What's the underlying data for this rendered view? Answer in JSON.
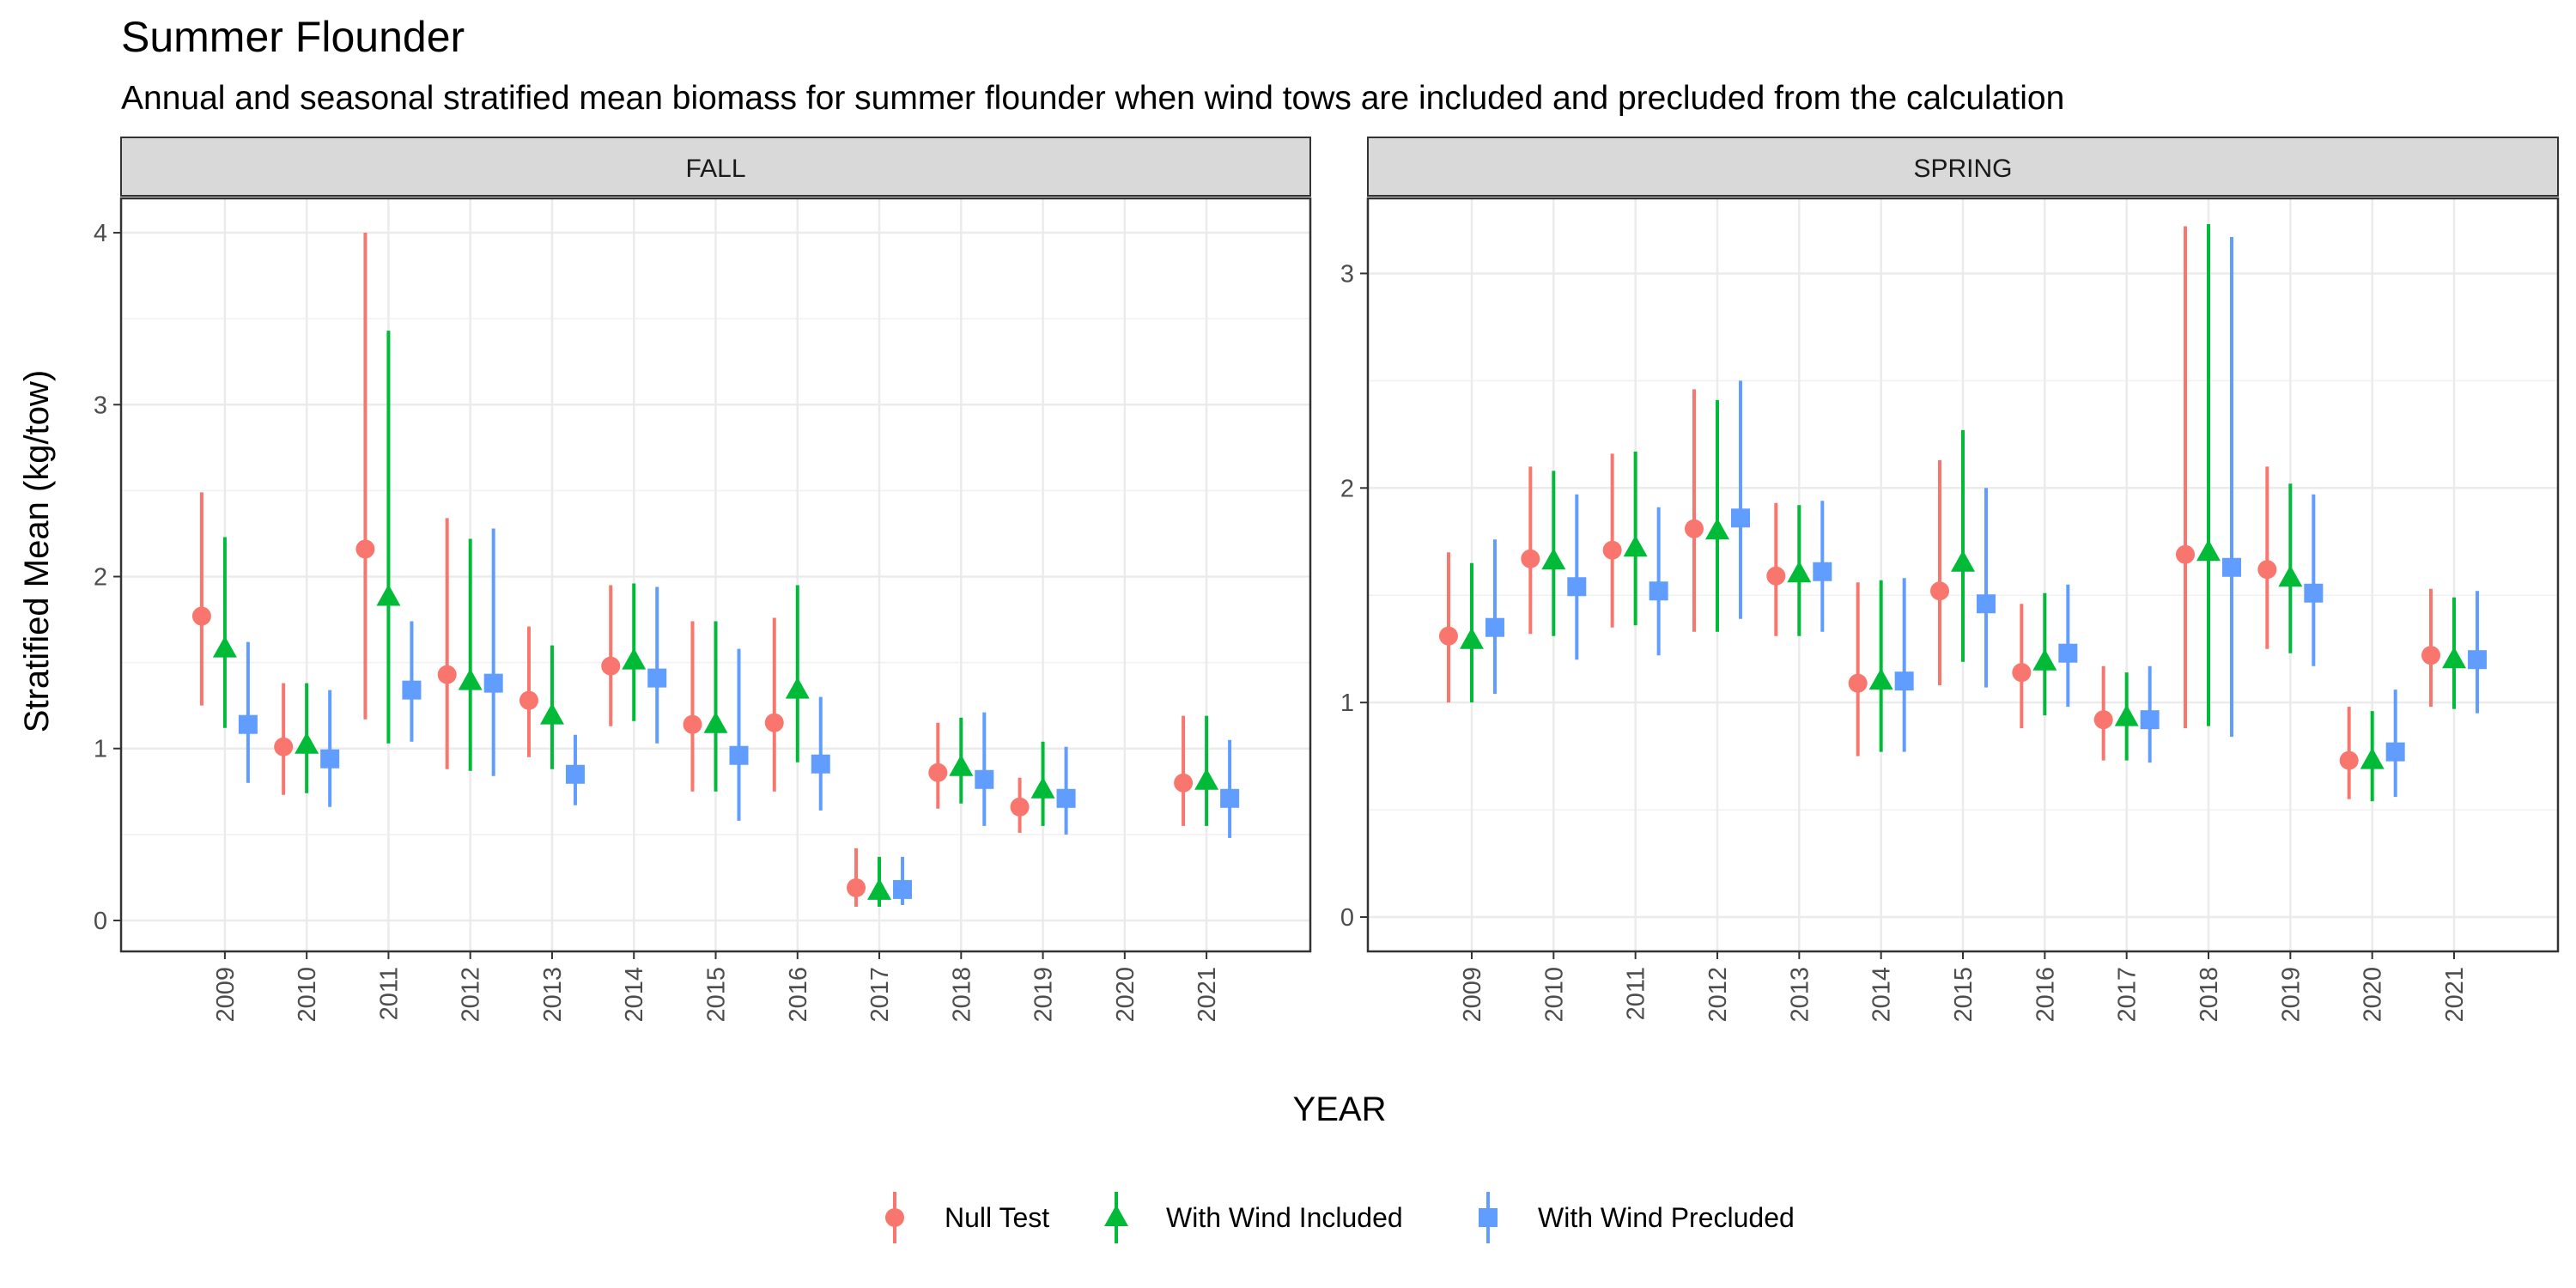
{
  "chart_data": {
    "type": "scatter",
    "title": "Summer Flounder",
    "subtitle": "Annual and seasonal stratified mean biomass for summer flounder when wind tows are included and precluded from the calculation",
    "xlabel": "YEAR",
    "ylabel": "Stratified Mean (kg/tow)",
    "legend_position": "bottom",
    "grid": true,
    "series_styles": [
      {
        "name": "Null Test",
        "color": "#F8766D",
        "shape": "circle"
      },
      {
        "name": "With Wind Included",
        "color": "#00BA38",
        "shape": "triangle"
      },
      {
        "name": "With Wind Precluded",
        "color": "#619CFF",
        "shape": "square"
      }
    ],
    "panels": [
      {
        "strip": "FALL",
        "categories": [
          "2009",
          "2010",
          "2011",
          "2012",
          "2013",
          "2014",
          "2015",
          "2016",
          "2017",
          "2018",
          "2019",
          "2020",
          "2021"
        ],
        "ylim": [
          -0.18,
          4.2
        ],
        "yticks": [
          0,
          1,
          2,
          3,
          4
        ],
        "series": [
          {
            "name": "Null Test",
            "values": [
              {
                "x": "2009",
                "y": 1.77,
                "lo": 1.25,
                "hi": 2.49
              },
              {
                "x": "2010",
                "y": 1.01,
                "lo": 0.73,
                "hi": 1.38
              },
              {
                "x": "2011",
                "y": 2.16,
                "lo": 1.17,
                "hi": 4.0
              },
              {
                "x": "2012",
                "y": 1.43,
                "lo": 0.88,
                "hi": 2.34
              },
              {
                "x": "2013",
                "y": 1.28,
                "lo": 0.95,
                "hi": 1.71
              },
              {
                "x": "2014",
                "y": 1.48,
                "lo": 1.13,
                "hi": 1.95
              },
              {
                "x": "2015",
                "y": 1.14,
                "lo": 0.75,
                "hi": 1.74
              },
              {
                "x": "2016",
                "y": 1.15,
                "lo": 0.75,
                "hi": 1.76
              },
              {
                "x": "2017",
                "y": 0.19,
                "lo": 0.08,
                "hi": 0.42
              },
              {
                "x": "2018",
                "y": 0.86,
                "lo": 0.65,
                "hi": 1.15
              },
              {
                "x": "2019",
                "y": 0.66,
                "lo": 0.51,
                "hi": 0.83
              },
              {
                "x": "2021",
                "y": 0.8,
                "lo": 0.55,
                "hi": 1.19
              }
            ]
          },
          {
            "name": "With Wind Included",
            "values": [
              {
                "x": "2009",
                "y": 1.58,
                "lo": 1.12,
                "hi": 2.23
              },
              {
                "x": "2010",
                "y": 1.02,
                "lo": 0.74,
                "hi": 1.38
              },
              {
                "x": "2011",
                "y": 1.88,
                "lo": 1.03,
                "hi": 3.43
              },
              {
                "x": "2012",
                "y": 1.39,
                "lo": 0.87,
                "hi": 2.22
              },
              {
                "x": "2013",
                "y": 1.19,
                "lo": 0.88,
                "hi": 1.6
              },
              {
                "x": "2014",
                "y": 1.51,
                "lo": 1.16,
                "hi": 1.96
              },
              {
                "x": "2015",
                "y": 1.14,
                "lo": 0.75,
                "hi": 1.74
              },
              {
                "x": "2016",
                "y": 1.34,
                "lo": 0.92,
                "hi": 1.95
              },
              {
                "x": "2017",
                "y": 0.17,
                "lo": 0.08,
                "hi": 0.37
              },
              {
                "x": "2018",
                "y": 0.89,
                "lo": 0.68,
                "hi": 1.18
              },
              {
                "x": "2019",
                "y": 0.76,
                "lo": 0.55,
                "hi": 1.04
              },
              {
                "x": "2021",
                "y": 0.81,
                "lo": 0.55,
                "hi": 1.19
              }
            ]
          },
          {
            "name": "With Wind Precluded",
            "values": [
              {
                "x": "2009",
                "y": 1.14,
                "lo": 0.8,
                "hi": 1.62
              },
              {
                "x": "2010",
                "y": 0.94,
                "lo": 0.66,
                "hi": 1.34
              },
              {
                "x": "2011",
                "y": 1.34,
                "lo": 1.04,
                "hi": 1.74
              },
              {
                "x": "2012",
                "y": 1.38,
                "lo": 0.84,
                "hi": 2.28
              },
              {
                "x": "2013",
                "y": 0.85,
                "lo": 0.67,
                "hi": 1.08
              },
              {
                "x": "2014",
                "y": 1.41,
                "lo": 1.03,
                "hi": 1.94
              },
              {
                "x": "2015",
                "y": 0.96,
                "lo": 0.58,
                "hi": 1.58
              },
              {
                "x": "2016",
                "y": 0.91,
                "lo": 0.64,
                "hi": 1.3
              },
              {
                "x": "2017",
                "y": 0.18,
                "lo": 0.09,
                "hi": 0.37
              },
              {
                "x": "2018",
                "y": 0.82,
                "lo": 0.55,
                "hi": 1.21
              },
              {
                "x": "2019",
                "y": 0.71,
                "lo": 0.5,
                "hi": 1.01
              },
              {
                "x": "2021",
                "y": 0.71,
                "lo": 0.48,
                "hi": 1.05
              }
            ]
          }
        ]
      },
      {
        "strip": "SPRING",
        "categories": [
          "2009",
          "2010",
          "2011",
          "2012",
          "2013",
          "2014",
          "2015",
          "2016",
          "2017",
          "2018",
          "2019",
          "2020",
          "2021"
        ],
        "ylim": [
          -0.16,
          3.35
        ],
        "yticks": [
          0,
          1,
          2,
          3
        ],
        "series": [
          {
            "name": "Null Test",
            "values": [
              {
                "x": "2009",
                "y": 1.31,
                "lo": 1.0,
                "hi": 1.7
              },
              {
                "x": "2010",
                "y": 1.67,
                "lo": 1.32,
                "hi": 2.1
              },
              {
                "x": "2011",
                "y": 1.71,
                "lo": 1.35,
                "hi": 2.16
              },
              {
                "x": "2012",
                "y": 1.81,
                "lo": 1.33,
                "hi": 2.46
              },
              {
                "x": "2013",
                "y": 1.59,
                "lo": 1.31,
                "hi": 1.93
              },
              {
                "x": "2014",
                "y": 1.09,
                "lo": 0.75,
                "hi": 1.56
              },
              {
                "x": "2015",
                "y": 1.52,
                "lo": 1.08,
                "hi": 2.13
              },
              {
                "x": "2016",
                "y": 1.14,
                "lo": 0.88,
                "hi": 1.46
              },
              {
                "x": "2017",
                "y": 0.92,
                "lo": 0.73,
                "hi": 1.17
              },
              {
                "x": "2018",
                "y": 1.69,
                "lo": 0.88,
                "hi": 3.22
              },
              {
                "x": "2019",
                "y": 1.62,
                "lo": 1.25,
                "hi": 2.1
              },
              {
                "x": "2020",
                "y": 0.73,
                "lo": 0.55,
                "hi": 0.98
              },
              {
                "x": "2021",
                "y": 1.22,
                "lo": 0.98,
                "hi": 1.53
              }
            ]
          },
          {
            "name": "With Wind Included",
            "values": [
              {
                "x": "2009",
                "y": 1.29,
                "lo": 1.0,
                "hi": 1.65
              },
              {
                "x": "2010",
                "y": 1.66,
                "lo": 1.31,
                "hi": 2.08
              },
              {
                "x": "2011",
                "y": 1.72,
                "lo": 1.36,
                "hi": 2.17
              },
              {
                "x": "2012",
                "y": 1.8,
                "lo": 1.33,
                "hi": 2.41
              },
              {
                "x": "2013",
                "y": 1.6,
                "lo": 1.31,
                "hi": 1.92
              },
              {
                "x": "2014",
                "y": 1.1,
                "lo": 0.77,
                "hi": 1.57
              },
              {
                "x": "2015",
                "y": 1.65,
                "lo": 1.19,
                "hi": 2.27
              },
              {
                "x": "2016",
                "y": 1.19,
                "lo": 0.94,
                "hi": 1.51
              },
              {
                "x": "2017",
                "y": 0.93,
                "lo": 0.73,
                "hi": 1.14
              },
              {
                "x": "2018",
                "y": 1.7,
                "lo": 0.89,
                "hi": 3.23
              },
              {
                "x": "2019",
                "y": 1.58,
                "lo": 1.23,
                "hi": 2.02
              },
              {
                "x": "2020",
                "y": 0.73,
                "lo": 0.54,
                "hi": 0.96
              },
              {
                "x": "2021",
                "y": 1.2,
                "lo": 0.97,
                "hi": 1.49
              }
            ]
          },
          {
            "name": "With Wind Precluded",
            "values": [
              {
                "x": "2009",
                "y": 1.35,
                "lo": 1.04,
                "hi": 1.76
              },
              {
                "x": "2010",
                "y": 1.54,
                "lo": 1.2,
                "hi": 1.97
              },
              {
                "x": "2011",
                "y": 1.52,
                "lo": 1.22,
                "hi": 1.91
              },
              {
                "x": "2012",
                "y": 1.86,
                "lo": 1.39,
                "hi": 2.5
              },
              {
                "x": "2013",
                "y": 1.61,
                "lo": 1.33,
                "hi": 1.94
              },
              {
                "x": "2014",
                "y": 1.1,
                "lo": 0.77,
                "hi": 1.58
              },
              {
                "x": "2015",
                "y": 1.46,
                "lo": 1.07,
                "hi": 2.0
              },
              {
                "x": "2016",
                "y": 1.23,
                "lo": 0.98,
                "hi": 1.55
              },
              {
                "x": "2017",
                "y": 0.92,
                "lo": 0.72,
                "hi": 1.17
              },
              {
                "x": "2018",
                "y": 1.63,
                "lo": 0.84,
                "hi": 3.17
              },
              {
                "x": "2019",
                "y": 1.51,
                "lo": 1.17,
                "hi": 1.97
              },
              {
                "x": "2020",
                "y": 0.77,
                "lo": 0.56,
                "hi": 1.06
              },
              {
                "x": "2021",
                "y": 1.2,
                "lo": 0.95,
                "hi": 1.52
              }
            ]
          }
        ]
      }
    ]
  }
}
